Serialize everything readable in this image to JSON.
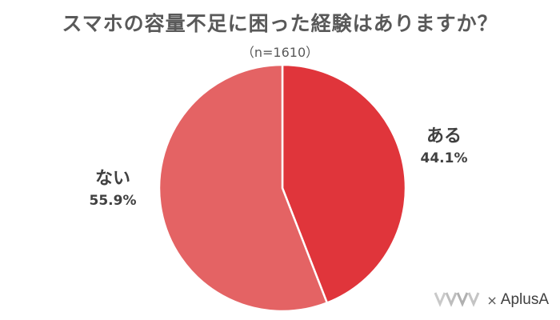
{
  "chart_data": {
    "type": "pie",
    "title": "スマホの容量不足に困った経験はありますか？",
    "subtitle": "（n=1610）",
    "slices": [
      {
        "label": "ある",
        "value": 44.1,
        "value_label": "44.1%",
        "color": "#e0353b"
      },
      {
        "label": "ない",
        "value": 55.9,
        "value_label": "55.9%",
        "color": "#e46364"
      }
    ],
    "start": "12 o'clock",
    "direction": "clockwise",
    "legend": "none"
  },
  "footer": {
    "times": "×",
    "brand": "AplusA",
    "partner_logo": "partner-logo-icon"
  }
}
